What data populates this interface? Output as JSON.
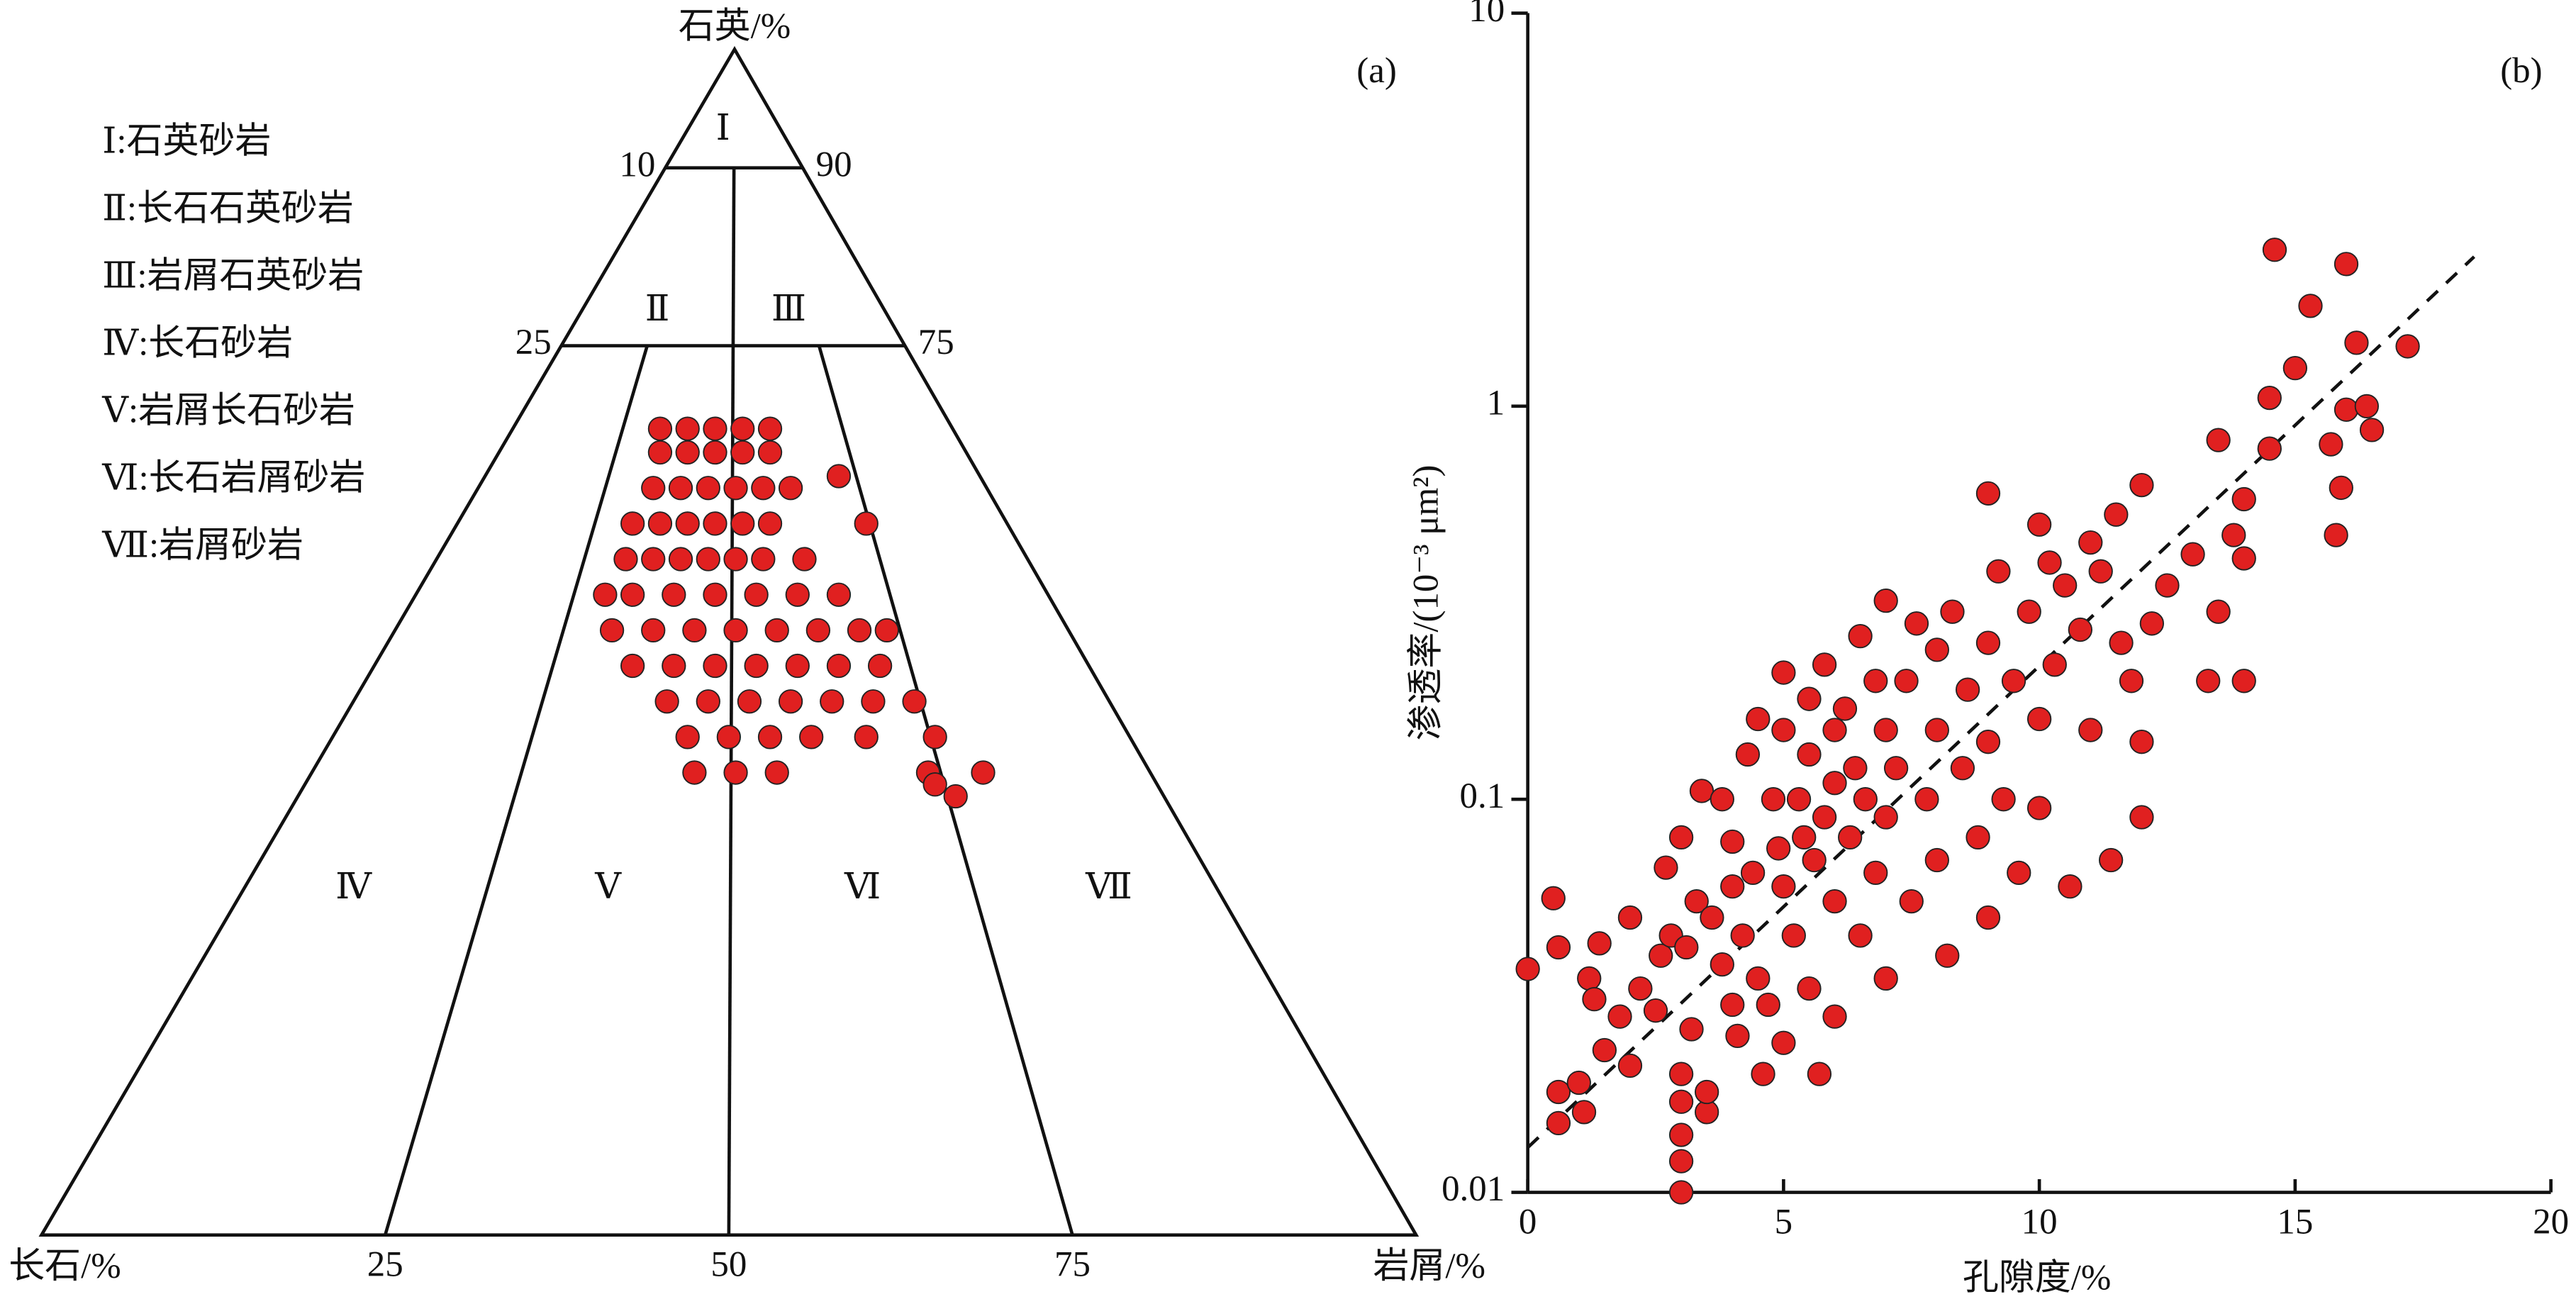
{
  "chart_data": [
    {
      "type": "ternary",
      "panel_label": "(a)",
      "top_label": "石英/%",
      "left_label": "长石/%",
      "right_label": "岩屑/%",
      "left_edge_ticks": [
        10,
        25
      ],
      "right_edge_ticks": [
        90,
        75
      ],
      "base_ticks": [
        25,
        50,
        75
      ],
      "regions": [
        "Ⅰ",
        "Ⅱ",
        "Ⅲ",
        "Ⅳ",
        "Ⅴ",
        "Ⅵ",
        "Ⅶ"
      ],
      "legend": [
        "Ⅰ:石英砂岩",
        "Ⅱ:长石石英砂岩",
        "Ⅲ:岩屑石英砂岩",
        "Ⅳ:长石砂岩",
        "Ⅴ:岩屑长石砂岩",
        "Ⅵ:长石岩屑砂岩",
        "Ⅶ:岩屑砂岩"
      ],
      "color": "#e02020",
      "points": [
        [
          68,
          21,
          11
        ],
        [
          68,
          19,
          13
        ],
        [
          68,
          17,
          15
        ],
        [
          68,
          15,
          17
        ],
        [
          68,
          13,
          19
        ],
        [
          66,
          22,
          12
        ],
        [
          66,
          20,
          14
        ],
        [
          66,
          18,
          16
        ],
        [
          66,
          16,
          18
        ],
        [
          66,
          14,
          20
        ],
        [
          63,
          24,
          13
        ],
        [
          63,
          22,
          15
        ],
        [
          63,
          20,
          17
        ],
        [
          63,
          18,
          19
        ],
        [
          63,
          16,
          21
        ],
        [
          63,
          14,
          23
        ],
        [
          64,
          10,
          26
        ],
        [
          60,
          27,
          13
        ],
        [
          60,
          25,
          15
        ],
        [
          60,
          23,
          17
        ],
        [
          60,
          21,
          19
        ],
        [
          60,
          19,
          21
        ],
        [
          60,
          17,
          23
        ],
        [
          60,
          10,
          30
        ],
        [
          57,
          29,
          14
        ],
        [
          57,
          27,
          16
        ],
        [
          57,
          25,
          18
        ],
        [
          57,
          23,
          20
        ],
        [
          57,
          21,
          22
        ],
        [
          57,
          19,
          24
        ],
        [
          57,
          16,
          27
        ],
        [
          54,
          32,
          14
        ],
        [
          54,
          30,
          16
        ],
        [
          54,
          27,
          19
        ],
        [
          54,
          24,
          22
        ],
        [
          54,
          21,
          25
        ],
        [
          54,
          18,
          28
        ],
        [
          54,
          15,
          31
        ],
        [
          51,
          33,
          16
        ],
        [
          51,
          30,
          19
        ],
        [
          51,
          27,
          22
        ],
        [
          51,
          24,
          25
        ],
        [
          51,
          21,
          28
        ],
        [
          51,
          18,
          31
        ],
        [
          51,
          15,
          34
        ],
        [
          51,
          13,
          36
        ],
        [
          48,
          33,
          19
        ],
        [
          48,
          30,
          22
        ],
        [
          48,
          27,
          25
        ],
        [
          48,
          24,
          28
        ],
        [
          48,
          21,
          31
        ],
        [
          48,
          18,
          34
        ],
        [
          48,
          15,
          37
        ],
        [
          45,
          32,
          23
        ],
        [
          45,
          29,
          26
        ],
        [
          45,
          26,
          29
        ],
        [
          45,
          23,
          32
        ],
        [
          45,
          20,
          35
        ],
        [
          45,
          17,
          38
        ],
        [
          45,
          14,
          41
        ],
        [
          42,
          32,
          26
        ],
        [
          42,
          29,
          29
        ],
        [
          42,
          26,
          32
        ],
        [
          42,
          23,
          35
        ],
        [
          42,
          19,
          39
        ],
        [
          42,
          14,
          44
        ],
        [
          39,
          33,
          28
        ],
        [
          39,
          30,
          31
        ],
        [
          39,
          27,
          34
        ],
        [
          39,
          16,
          45
        ],
        [
          39,
          12,
          49
        ],
        [
          38,
          16,
          46
        ],
        [
          37,
          15,
          48
        ]
      ]
    },
    {
      "type": "scatter",
      "panel_label": "(b)",
      "x_label": "孔隙度/%",
      "y_label": "渗透率/(10⁻³ μm²)",
      "xlim": [
        0,
        20
      ],
      "ylim": [
        0.01,
        10
      ],
      "log_y": true,
      "xticks": [
        0,
        5,
        10,
        15,
        20
      ],
      "yticks": [
        0.01,
        0.1,
        1,
        10
      ],
      "color": "#e02020",
      "trendline": {
        "x": [
          0,
          18.5
        ],
        "y": [
          0.013,
          2.4
        ]
      },
      "x": [
        0,
        0.5,
        0.6,
        0.6,
        0.6,
        1,
        1.1,
        1.2,
        1.3,
        1.4,
        1.5,
        1.8,
        2,
        2,
        2.2,
        2.5,
        2.6,
        2.7,
        2.8,
        3,
        3,
        3,
        3,
        3,
        3,
        3.1,
        3.2,
        3.3,
        3.4,
        3.5,
        3.5,
        3.6,
        3.8,
        3.8,
        4,
        4,
        4,
        4.1,
        4.2,
        4.3,
        4.4,
        4.5,
        4.5,
        4.6,
        4.7,
        4.8,
        4.9,
        5,
        5,
        5,
        5,
        5.2,
        5.3,
        5.4,
        5.5,
        5.5,
        5.5,
        5.6,
        5.7,
        5.8,
        5.8,
        6,
        6,
        6,
        6,
        6.2,
        6.3,
        6.4,
        6.5,
        6.5,
        6.6,
        6.8,
        6.8,
        7,
        7,
        7,
        7,
        7.2,
        7.4,
        7.5,
        7.6,
        7.8,
        8,
        8,
        8,
        8.2,
        8.3,
        8.5,
        8.6,
        8.8,
        9,
        9,
        9,
        9,
        9.2,
        9.3,
        9.5,
        9.6,
        9.8,
        10,
        10,
        10,
        10.2,
        10.3,
        10.5,
        10.6,
        10.8,
        11,
        11,
        11.2,
        11.4,
        11.5,
        11.6,
        11.8,
        12,
        12,
        12,
        12.2,
        12.5,
        13,
        13.3,
        13.5,
        13.5,
        13.8,
        14,
        14,
        14,
        14.5,
        14.5,
        14.6,
        15,
        15.3,
        15.7,
        15.8,
        15.9,
        16,
        16,
        16.2,
        16.4,
        16.5,
        17.2
      ],
      "values": [
        0.037,
        0.056,
        0.042,
        0.018,
        0.015,
        0.019,
        0.016,
        0.035,
        0.031,
        0.043,
        0.023,
        0.028,
        0.05,
        0.021,
        0.033,
        0.029,
        0.04,
        0.067,
        0.045,
        0.08,
        0.012,
        0.01,
        0.014,
        0.017,
        0.02,
        0.042,
        0.026,
        0.055,
        0.105,
        0.016,
        0.018,
        0.05,
        0.1,
        0.038,
        0.03,
        0.06,
        0.078,
        0.025,
        0.045,
        0.13,
        0.065,
        0.035,
        0.16,
        0.02,
        0.03,
        0.1,
        0.075,
        0.21,
        0.15,
        0.06,
        0.024,
        0.045,
        0.1,
        0.08,
        0.18,
        0.13,
        0.033,
        0.07,
        0.02,
        0.22,
        0.09,
        0.15,
        0.11,
        0.055,
        0.028,
        0.17,
        0.08,
        0.12,
        0.26,
        0.045,
        0.1,
        0.2,
        0.065,
        0.15,
        0.32,
        0.09,
        0.035,
        0.12,
        0.2,
        0.055,
        0.28,
        0.1,
        0.15,
        0.24,
        0.07,
        0.04,
        0.3,
        0.12,
        0.19,
        0.08,
        0.6,
        0.25,
        0.14,
        0.05,
        0.38,
        0.1,
        0.2,
        0.065,
        0.3,
        0.5,
        0.16,
        0.095,
        0.4,
        0.22,
        0.35,
        0.06,
        0.27,
        0.45,
        0.15,
        0.38,
        0.07,
        0.53,
        0.25,
        0.2,
        0.63,
        0.14,
        0.09,
        0.28,
        0.35,
        0.42,
        0.2,
        0.82,
        0.3,
        0.47,
        0.58,
        0.41,
        0.2,
        1.05,
        0.78,
        2.5,
        1.25,
        1.8,
        0.8,
        0.47,
        0.62,
        2.3,
        0.98,
        1.45,
        1.0,
        0.87,
        1.42
      ]
    }
  ]
}
